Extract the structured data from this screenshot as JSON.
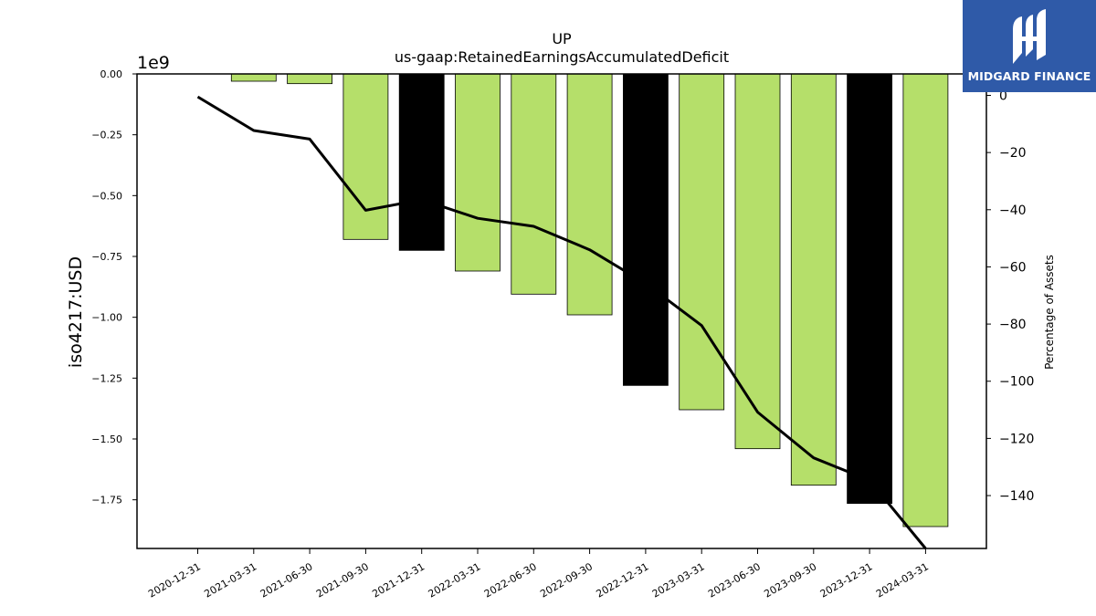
{
  "brand": {
    "name": "MIDGARD FINANCE",
    "color": "#2f5aa8"
  },
  "chart_data": {
    "type": "bar",
    "title": "UP",
    "subtitle": "us-gaap:RetainedEarningsAccumulatedDeficit",
    "ylabel": "iso4217:USD",
    "y_offset_label": "1e9",
    "y2label": "Percentage of Assets",
    "categories": [
      "2020-12-31",
      "2021-03-31",
      "2021-06-30",
      "2021-09-30",
      "2021-12-31",
      "2022-03-31",
      "2022-06-30",
      "2022-09-30",
      "2022-12-31",
      "2023-03-31",
      "2023-06-30",
      "2023-09-30",
      "2023-12-31",
      "2024-03-31"
    ],
    "series": [
      {
        "kind": "bar",
        "axis": "left",
        "unit_scale": 1000000000.0,
        "values": [
          0,
          -0.03,
          -0.04,
          -0.68,
          -0.725,
          -0.81,
          -0.905,
          -0.99,
          -1.28,
          -1.38,
          -1.54,
          -1.69,
          -1.765,
          -1.86
        ],
        "colors": [
          "#b5df6a",
          "#b5df6a",
          "#b5df6a",
          "#b5df6a",
          "#000000",
          "#b5df6a",
          "#b5df6a",
          "#b5df6a",
          "#000000",
          "#b5df6a",
          "#b5df6a",
          "#b5df6a",
          "#000000",
          "#b5df6a"
        ]
      },
      {
        "kind": "line",
        "axis": "right",
        "color": "#000000",
        "values": [
          -0.5,
          -12.3,
          -15.3,
          -40.2,
          -36.5,
          -43.0,
          -45.8,
          -54.0,
          -65.8,
          -80.5,
          -110.8,
          -126.8,
          -134.7,
          -158.5
        ]
      }
    ],
    "ylim": [
      -1.95,
      0.0
    ],
    "yticks": [
      0.0,
      -0.25,
      -0.5,
      -0.75,
      -1.0,
      -1.25,
      -1.5,
      -1.75
    ],
    "ytick_labels": [
      "0.00",
      "−0.25",
      "−0.50",
      "−0.75",
      "−1.00",
      "−1.25",
      "−1.50",
      "−1.75"
    ],
    "y2lim": [
      -158.5,
      7.5
    ],
    "y2ticks": [
      0,
      -20,
      -40,
      -60,
      -80,
      -100,
      -120,
      -140
    ],
    "y2tick_labels": [
      "0",
      "−20",
      "−40",
      "−60",
      "−80",
      "−100",
      "−120",
      "−140"
    ],
    "grid": false,
    "legend": "none"
  }
}
